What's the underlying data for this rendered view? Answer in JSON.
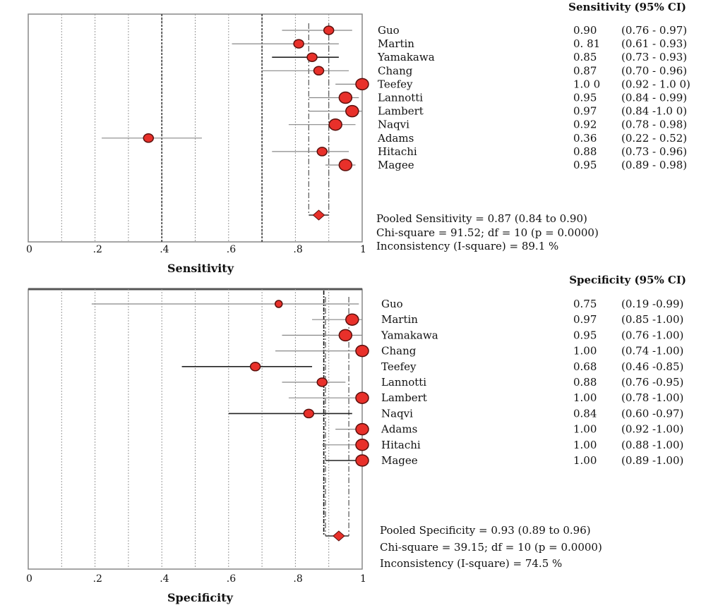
{
  "chart_data": [
    {
      "type": "forest",
      "measure": "Sensitivity",
      "header": "Sensitivity (95% CI)",
      "xlabel": "Sensitivity",
      "xlim": [
        0,
        1
      ],
      "xticks": [
        {
          "v": 0,
          "label": "0"
        },
        {
          "v": 0.2,
          "label": ".2"
        },
        {
          "v": 0.4,
          "label": ".4"
        },
        {
          "v": 0.6,
          "label": ".6"
        },
        {
          "v": 0.8,
          "label": ".8"
        },
        {
          "v": 1,
          "label": "1"
        }
      ],
      "reference_lines": [
        0.4,
        0.7
      ],
      "studies": [
        {
          "name": "Guo",
          "est": 0.9,
          "lo": 0.76,
          "hi": 0.97,
          "value_text": "0.90",
          "ci_text": "(0.76 - 0.97)"
        },
        {
          "name": "Martin",
          "est": 0.81,
          "lo": 0.61,
          "hi": 0.93,
          "value_text": "0. 81",
          "ci_text": "(0.61 - 0.93)"
        },
        {
          "name": "Yamakawa",
          "est": 0.85,
          "lo": 0.73,
          "hi": 0.93,
          "value_text": "0.85",
          "ci_text": "(0.73 - 0.93)"
        },
        {
          "name": "Chang",
          "est": 0.87,
          "lo": 0.7,
          "hi": 0.96,
          "value_text": "0.87",
          "ci_text": "(0.70 - 0.96)"
        },
        {
          "name": "Teefey",
          "est": 1.0,
          "lo": 0.92,
          "hi": 1.0,
          "value_text": "1.0 0",
          "ci_text": "(0.92 - 1.0 0)"
        },
        {
          "name": "Lannotti",
          "est": 0.95,
          "lo": 0.84,
          "hi": 0.99,
          "value_text": "0.95",
          "ci_text": "(0.84 - 0.99)"
        },
        {
          "name": "Lambert",
          "est": 0.97,
          "lo": 0.84,
          "hi": 1.0,
          "value_text": "0.97",
          "ci_text": "(0.84 -1.0 0)"
        },
        {
          "name": "Naqvi",
          "est": 0.92,
          "lo": 0.78,
          "hi": 0.98,
          "value_text": "0.92",
          "ci_text": "(0.78 - 0.98)"
        },
        {
          "name": "Adams",
          "est": 0.36,
          "lo": 0.22,
          "hi": 0.52,
          "value_text": "0.36",
          "ci_text": "(0.22 - 0.52)"
        },
        {
          "name": "Hitachi",
          "est": 0.88,
          "lo": 0.73,
          "hi": 0.96,
          "value_text": "0.88",
          "ci_text": "(0.73 - 0.96)"
        },
        {
          "name": "Magee",
          "est": 0.95,
          "lo": 0.89,
          "hi": 0.98,
          "value_text": "0.95",
          "ci_text": "(0.89 - 0.98)"
        }
      ],
      "pooled": {
        "est": 0.87,
        "lo": 0.84,
        "hi": 0.9
      },
      "stats": [
        "Pooled Sensitivity = 0.87 (0.84 to 0.90)",
        "Chi-square = 91.52; df = 10 (p = 0.0000)",
        "Inconsistency (I-square) = 89.1 %"
      ]
    },
    {
      "type": "forest",
      "measure": "Specificity",
      "header": "Specificity (95% CI)",
      "xlabel": "Specificity",
      "xlim": [
        0,
        1
      ],
      "xticks": [
        {
          "v": 0,
          "label": "0"
        },
        {
          "v": 0.2,
          "label": ".2"
        },
        {
          "v": 0.4,
          "label": ".4"
        },
        {
          "v": 0.6,
          "label": ".6"
        },
        {
          "v": 0.8,
          "label": ".8"
        },
        {
          "v": 1,
          "label": "1"
        }
      ],
      "reference_lines": [],
      "studies": [
        {
          "name": "Guo",
          "est": 0.75,
          "lo": 0.19,
          "hi": 0.99,
          "value_text": "0.75",
          "ci_text": "(0.19 -0.99)"
        },
        {
          "name": "Martin",
          "est": 0.97,
          "lo": 0.85,
          "hi": 1.0,
          "value_text": "0.97",
          "ci_text": "(0.85 -1.00)"
        },
        {
          "name": "Yamakawa",
          "est": 0.95,
          "lo": 0.76,
          "hi": 1.0,
          "value_text": "0.95",
          "ci_text": "(0.76 -1.00)"
        },
        {
          "name": "Chang",
          "est": 1.0,
          "lo": 0.74,
          "hi": 1.0,
          "value_text": "1.00",
          "ci_text": "(0.74 -1.00)"
        },
        {
          "name": "Teefey",
          "est": 0.68,
          "lo": 0.46,
          "hi": 0.85,
          "value_text": "0.68",
          "ci_text": "(0.46 -0.85)"
        },
        {
          "name": "Lannotti",
          "est": 0.88,
          "lo": 0.76,
          "hi": 0.95,
          "value_text": "0.88",
          "ci_text": "(0.76 -0.95)"
        },
        {
          "name": "Lambert",
          "est": 1.0,
          "lo": 0.78,
          "hi": 1.0,
          "value_text": "1.00",
          "ci_text": "(0.78 -1.00)"
        },
        {
          "name": "Naqvi",
          "est": 0.84,
          "lo": 0.6,
          "hi": 0.97,
          "value_text": "0.84",
          "ci_text": "(0.60 -0.97)"
        },
        {
          "name": "Adams",
          "est": 1.0,
          "lo": 0.92,
          "hi": 1.0,
          "value_text": "1.00",
          "ci_text": "(0.92 -1.00)"
        },
        {
          "name": "Hitachi",
          "est": 1.0,
          "lo": 0.88,
          "hi": 1.0,
          "value_text": "1.00",
          "ci_text": "(0.88 -1.00)"
        },
        {
          "name": "Magee",
          "est": 1.0,
          "lo": 0.89,
          "hi": 1.0,
          "value_text": "1.00",
          "ci_text": "(0.89 -1.00)"
        }
      ],
      "pooled": {
        "est": 0.93,
        "lo": 0.89,
        "hi": 0.96
      },
      "stats": [
        "Pooled Specificity = 0.93 (0.89 to 0.96)",
        "Chi-square = 39.15; df = 10 (p = 0.0000)",
        "Inconsistency (I-square) = 74.5 %"
      ]
    }
  ],
  "colors": {
    "marker": "#e8302a",
    "marker_edge": "#5a0f0c",
    "ci": "#888888",
    "ci_dark": "#222222",
    "grid": "#999999",
    "frame": "#888888"
  }
}
